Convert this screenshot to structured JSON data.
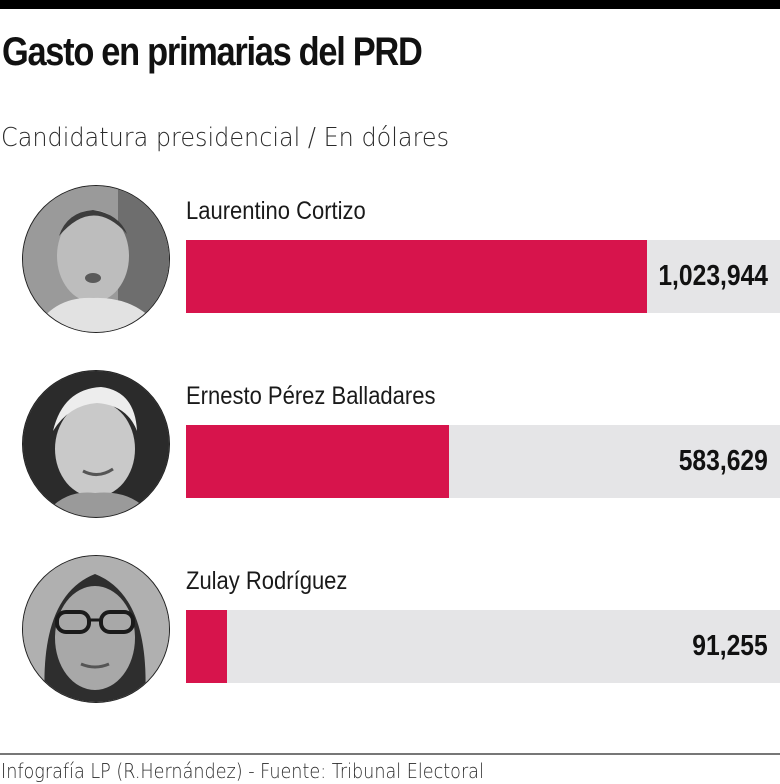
{
  "header": {
    "title": "Gasto en primarias del PRD",
    "subtitle": "Candidatura presidencial / En dólares"
  },
  "colors": {
    "bar": "#d7144c",
    "track": "#e5e5e7",
    "top_rule": "#000000"
  },
  "candidates": [
    {
      "name": "Laurentino Cortizo",
      "value_label": "1,023,944",
      "value": 1023944,
      "photo": "candidate-photo-cortizo"
    },
    {
      "name": "Ernesto Pérez Balladares",
      "value_label": "583,629",
      "value": 583629,
      "photo": "candidate-photo-perez-balladares"
    },
    {
      "name": "Zulay Rodríguez",
      "value_label": "91,255",
      "value": 91255,
      "photo": "candidate-photo-rodriguez"
    }
  ],
  "footer": {
    "credit": "Infografía LP (R.Hernández) - Fuente:  Tribunal Electoral"
  },
  "chart_data": {
    "type": "bar",
    "orientation": "horizontal",
    "title": "Gasto en primarias del PRD",
    "subtitle": "Candidatura presidencial / En dólares",
    "categories": [
      "Laurentino Cortizo",
      "Ernesto Pérez Balladares",
      "Zulay Rodríguez"
    ],
    "values": [
      1023944,
      583629,
      91255
    ],
    "value_labels": [
      "1,023,944",
      "583,629",
      "91,255"
    ],
    "xlabel": "",
    "ylabel": "",
    "unit": "USD",
    "grid": false,
    "legend": null,
    "source": "Infografía LP (R.Hernández) - Fuente:  Tribunal Electoral"
  }
}
